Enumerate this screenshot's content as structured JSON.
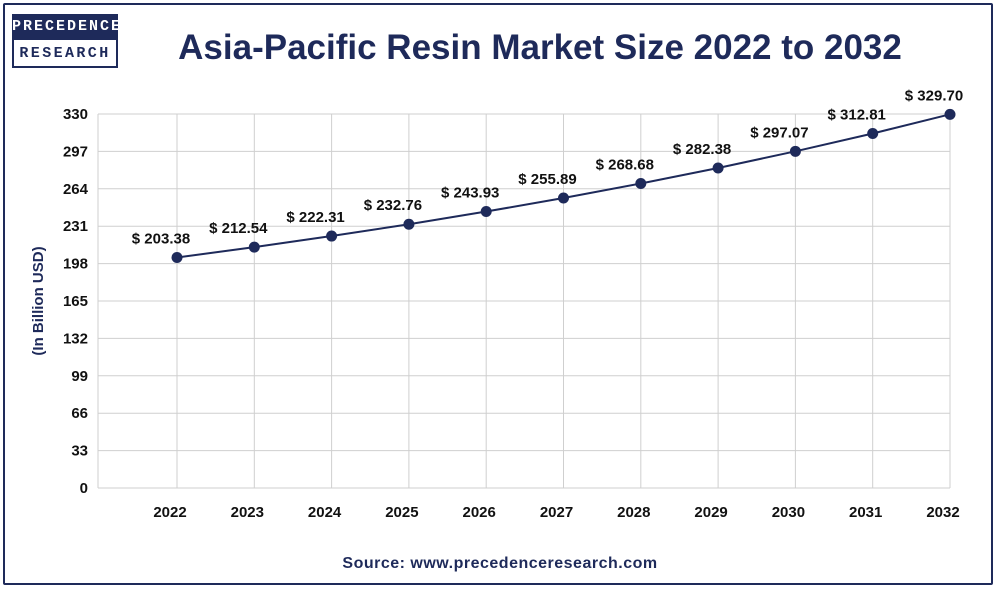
{
  "logo": {
    "line1": "PRECEDENCE",
    "line2": "RESEARCH"
  },
  "title": "Asia-Pacific Resin Market Size 2022 to 2032",
  "source": "Source: www.precedenceresearch.com",
  "colors": {
    "primary": "#1e2a5a",
    "grid": "#cfcfcf",
    "text": "#111111"
  },
  "chart_data": {
    "type": "line",
    "title": "Asia-Pacific Resin Market Size 2022 to 2032",
    "xlabel": "",
    "ylabel": "(In Billion USD)",
    "categories": [
      "2022",
      "2023",
      "2024",
      "2025",
      "2026",
      "2027",
      "2028",
      "2029",
      "2030",
      "2031",
      "2032"
    ],
    "values": [
      203.38,
      212.54,
      222.31,
      232.76,
      243.93,
      255.89,
      268.68,
      282.38,
      297.07,
      312.81,
      329.7
    ],
    "data_labels": [
      "$ 203.38",
      "$ 212.54",
      "$ 222.31",
      "$ 232.76",
      "$ 243.93",
      "$ 255.89",
      "$ 268.68",
      "$ 282.38",
      "$ 297.07",
      "$ 312.81",
      "$ 329.70"
    ],
    "yticks": [
      0,
      33,
      66,
      99,
      132,
      165,
      198,
      231,
      264,
      297,
      330
    ],
    "ylim": [
      0,
      330
    ],
    "grid": true,
    "legend": "none"
  }
}
